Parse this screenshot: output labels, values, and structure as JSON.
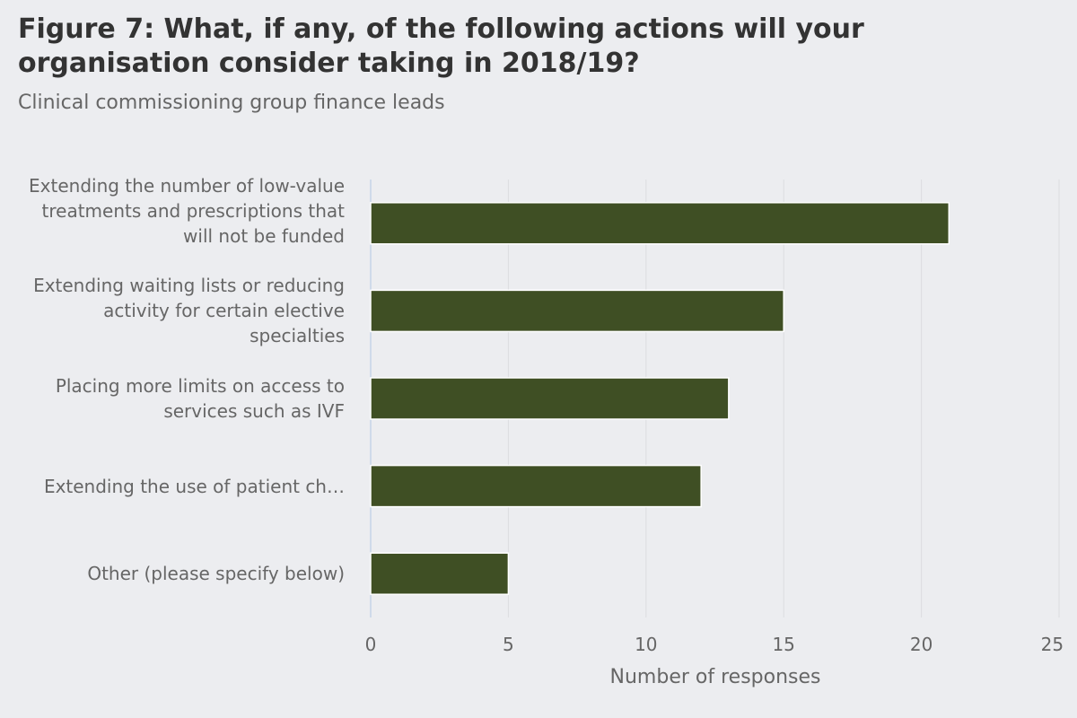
{
  "title": "Figure 7: What, if any, of the following actions will your organisation consider taking in 2018/19?",
  "subtitle": "Clinical commissioning group finance leads",
  "chart_data": {
    "type": "bar",
    "orientation": "horizontal",
    "categories": [
      "Extending the number of low-value treatments and prescriptions that will not be funded",
      "Extending waiting lists or reducing activity for certain elective specialties",
      "Placing more limits on access to services such as IVF",
      "Extending the use of patient ch…",
      "Other (please specify below)"
    ],
    "values": [
      21,
      15,
      13,
      12,
      5
    ],
    "xlabel": "Number of responses",
    "xlim": [
      0,
      25
    ],
    "xticks": [
      0,
      5,
      10,
      15,
      20,
      25
    ],
    "grid": true,
    "bar_color": "#3f4f24"
  }
}
